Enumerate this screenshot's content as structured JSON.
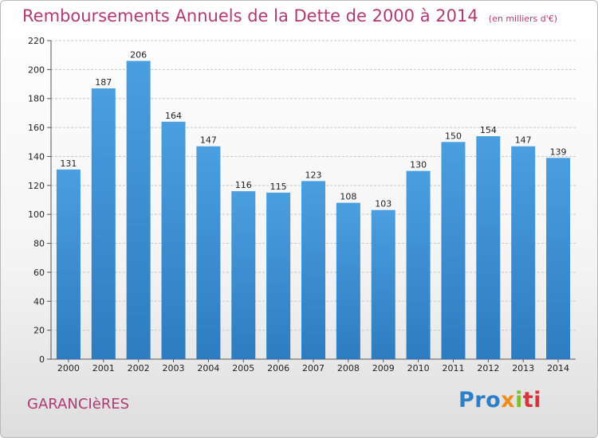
{
  "chart_data": {
    "type": "bar",
    "title": "Remboursements Annuels de la Dette de 2000 à 2014",
    "subtitle": "(en milliers d'€)",
    "categories": [
      "2000",
      "2001",
      "2002",
      "2003",
      "2004",
      "2005",
      "2006",
      "2007",
      "2008",
      "2009",
      "2010",
      "2011",
      "2012",
      "2013",
      "2014"
    ],
    "values": [
      131,
      187,
      206,
      164,
      147,
      116,
      115,
      123,
      108,
      103,
      130,
      150,
      154,
      147,
      139
    ],
    "ylim": [
      0,
      220
    ],
    "yticks": [
      0,
      20,
      40,
      60,
      80,
      100,
      120,
      140,
      160,
      180,
      200,
      220
    ],
    "grid": true,
    "bar_color": "#4a9fe0",
    "bar_color_dark": "#2d7cc1"
  },
  "footer": {
    "commune": "GARANCIèRES",
    "logo": {
      "p1": "Pro",
      "p2": "x",
      "p3": "i",
      "p4": "ti"
    }
  }
}
